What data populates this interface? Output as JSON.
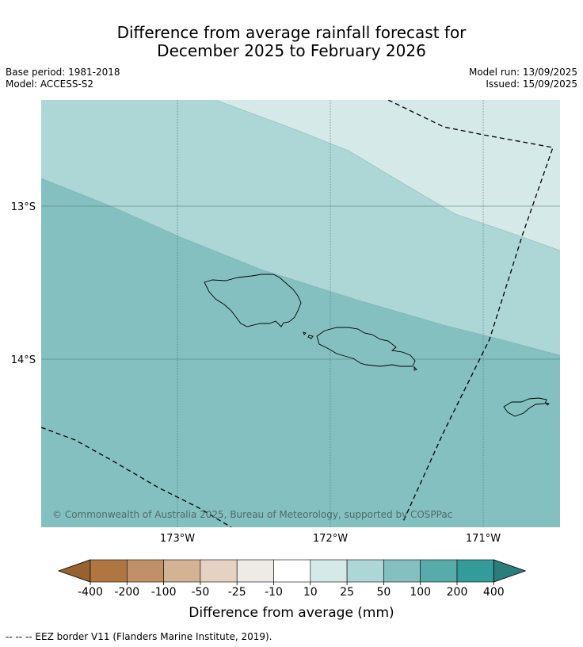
{
  "header": {
    "title_line1": "Difference from average rainfall forecast for",
    "title_line2": "December 2025 to February 2026",
    "base_period": "Base period: 1981-2018",
    "model": "Model: ACCESS-S2",
    "model_run": "Model run: 13/09/2025",
    "issued": "Issued: 15/09/2025"
  },
  "map": {
    "lat_labels": [
      "13°S",
      "14°S"
    ],
    "lon_labels": [
      "173°W",
      "172°W",
      "171°W"
    ],
    "copyright": "© Commonwealth of Australia 2025, Bureau of Meteorology, supported by COSPPac",
    "zones": [
      {
        "category": "10 to 25",
        "color": "#d5e9e8"
      },
      {
        "category": "25 to 50",
        "color": "#add6d6"
      },
      {
        "category": "50 to 100",
        "color": "#84c0c0"
      }
    ]
  },
  "legend": {
    "title": "Difference from average (mm)",
    "ticks": [
      "-400",
      "-200",
      "-100",
      "-50",
      "-25",
      "-10",
      "10",
      "25",
      "50",
      "100",
      "200",
      "400"
    ],
    "colors": [
      "#976130",
      "#af7641",
      "#c09167",
      "#d4b294",
      "#e6d2c2",
      "#eeebe7",
      "#ffffff",
      "#d5e9e8",
      "#add6d6",
      "#84c0c0",
      "#58abab",
      "#349b9b",
      "#2b7c7c"
    ]
  },
  "footnote": "--  --  -- EEZ border V11 (Flanders Marine Institute, 2019)."
}
